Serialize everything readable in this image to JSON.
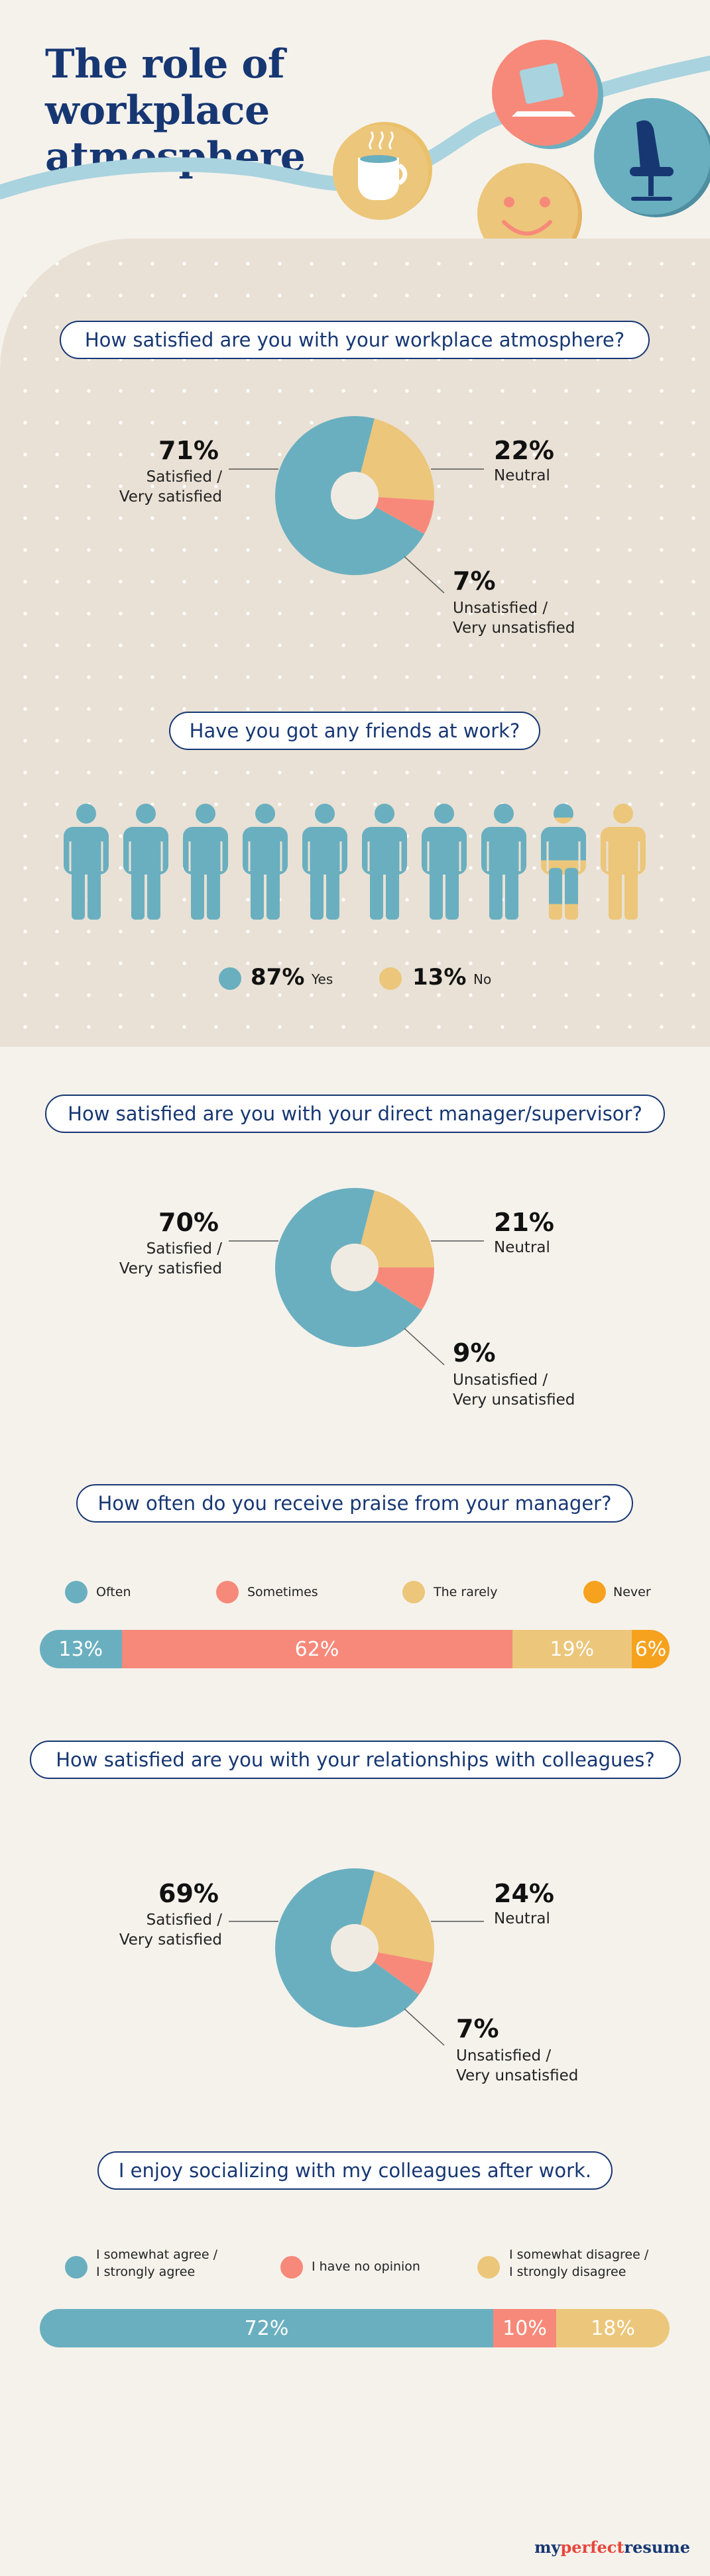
{
  "title_line1": "The role of workplace",
  "title_line2": "atmosphere",
  "colors": {
    "teal": "#6aafbf",
    "yellow": "#ecc67a",
    "coral": "#f7897a",
    "orange": "#f6a21e",
    "navy": "#173773",
    "beige": "#e9e1d5"
  },
  "q1": {
    "question": "How satisfied are you with your workplace atmosphere?",
    "satisfied_pct": "71%",
    "satisfied_label_1": "Satisfied /",
    "satisfied_label_2": "Very satisfied",
    "neutral_pct": "22%",
    "neutral_label": "Neutral",
    "unsatisfied_pct": "7%",
    "unsatisfied_label_1": "Unsatisfied /",
    "unsatisfied_label_2": "Very unsatisfied"
  },
  "q2": {
    "question": "Have you got any friends at work?",
    "yes_pct": "87%",
    "yes_label": "Yes",
    "no_pct": "13%",
    "no_label": "No"
  },
  "q3": {
    "question": "How satisfied are you with your direct manager/supervisor?",
    "satisfied_pct": "70%",
    "satisfied_label_1": "Satisfied /",
    "satisfied_label_2": "Very satisfied",
    "neutral_pct": "21%",
    "neutral_label": "Neutral",
    "unsatisfied_pct": "9%",
    "unsatisfied_label_1": "Unsatisfied /",
    "unsatisfied_label_2": "Very unsatisfied"
  },
  "q4": {
    "question": "How often do you receive praise from your manager?",
    "legend": [
      "Often",
      "Sometimes",
      "The rarely",
      "Never"
    ],
    "values_text": [
      "13%",
      "62%",
      "19%",
      "6%"
    ]
  },
  "q5": {
    "question": "How satisfied are you with your relationships with colleagues?",
    "satisfied_pct": "69%",
    "satisfied_label_1": "Satisfied /",
    "satisfied_label_2": "Very satisfied",
    "neutral_pct": "24%",
    "neutral_label": "Neutral",
    "unsatisfied_pct": "7%",
    "unsatisfied_label_1": "Unsatisfied /",
    "unsatisfied_label_2": "Very unsatisfied"
  },
  "q6": {
    "question": "I enjoy socializing with my colleagues after work.",
    "legend_1a": "I somewhat agree /",
    "legend_1b": "I strongly agree",
    "legend_2": "I have no opinion",
    "legend_3a": "I somewhat disagree /",
    "legend_3b": "I strongly disagree",
    "values_text": [
      "72%",
      "10%",
      "18%"
    ]
  },
  "brand": {
    "part1": "my",
    "part2": "perfect",
    "part3": "resume"
  },
  "chart_data": [
    {
      "type": "pie",
      "question": "How satisfied are you with your workplace atmosphere?",
      "categories": [
        "Satisfied / Very satisfied",
        "Neutral",
        "Unsatisfied / Very unsatisfied"
      ],
      "values": [
        71,
        22,
        7
      ],
      "colors": [
        "#6aafbf",
        "#ecc67a",
        "#f7897a"
      ]
    },
    {
      "type": "pictogram",
      "question": "Have you got any friends at work?",
      "categories": [
        "Yes",
        "No"
      ],
      "values": [
        87,
        13
      ],
      "colors": [
        "#6aafbf",
        "#ecc67a"
      ]
    },
    {
      "type": "pie",
      "question": "How satisfied are you with your direct manager/supervisor?",
      "categories": [
        "Satisfied / Very satisfied",
        "Neutral",
        "Unsatisfied / Very unsatisfied"
      ],
      "values": [
        70,
        21,
        9
      ],
      "colors": [
        "#6aafbf",
        "#ecc67a",
        "#f7897a"
      ]
    },
    {
      "type": "bar",
      "stacked": true,
      "question": "How often do you receive praise from your manager?",
      "categories": [
        "Often",
        "Sometimes",
        "The rarely",
        "Never"
      ],
      "values": [
        13,
        62,
        19,
        6
      ],
      "colors": [
        "#6aafbf",
        "#f7897a",
        "#ecc67a",
        "#f6a21e"
      ]
    },
    {
      "type": "pie",
      "question": "How satisfied are you with your relationships with colleagues?",
      "categories": [
        "Satisfied / Very satisfied",
        "Neutral",
        "Unsatisfied / Very unsatisfied"
      ],
      "values": [
        69,
        24,
        7
      ],
      "colors": [
        "#6aafbf",
        "#ecc67a",
        "#f7897a"
      ]
    },
    {
      "type": "bar",
      "stacked": true,
      "question": "I enjoy socializing with my colleagues after work.",
      "categories": [
        "I somewhat agree / I strongly agree",
        "I have no opinion",
        "I somewhat disagree / I strongly disagree"
      ],
      "values": [
        72,
        10,
        18
      ],
      "colors": [
        "#6aafbf",
        "#f7897a",
        "#ecc67a"
      ]
    }
  ]
}
